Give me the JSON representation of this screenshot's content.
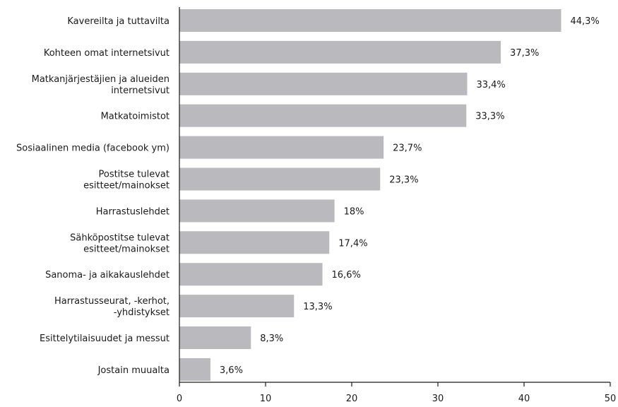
{
  "chart_data": {
    "type": "bar",
    "orientation": "horizontal",
    "title": "",
    "xlabel": "",
    "ylabel": "",
    "xlim": [
      0,
      50
    ],
    "xticks": [
      0,
      10,
      20,
      30,
      40,
      50
    ],
    "grid": false,
    "bar_color": "#b9b9be",
    "categories": [
      [
        "Kavereilta ja tuttavilta"
      ],
      [
        "Kohteen omat internetsivut"
      ],
      [
        "Matkanjärjestäjien ja alueiden",
        "internetsivut"
      ],
      [
        "Matkatoimistot"
      ],
      [
        "Sosiaalinen media (facebook ym)"
      ],
      [
        "Postitse tulevat",
        "esitteet/mainokset"
      ],
      [
        "Harrastuslehdet"
      ],
      [
        "Sähköpostitse tulevat",
        "esitteet/mainokset"
      ],
      [
        "Sanoma- ja aikakauslehdet"
      ],
      [
        "Harrastusseurat, -kerhot,",
        "-yhdistykset"
      ],
      [
        "Esittelytilaisuudet ja messut"
      ],
      [
        "Jostain muualta"
      ]
    ],
    "values": [
      44.3,
      37.3,
      33.4,
      33.3,
      23.7,
      23.3,
      18,
      17.4,
      16.6,
      13.3,
      8.3,
      3.6
    ],
    "value_labels": [
      "44,3%",
      "37,3%",
      "33,4%",
      "33,3%",
      "23,7%",
      "23,3%",
      "18%",
      "17,4%",
      "16,6%",
      "13,3%",
      "8,3%",
      "3,6%"
    ]
  }
}
